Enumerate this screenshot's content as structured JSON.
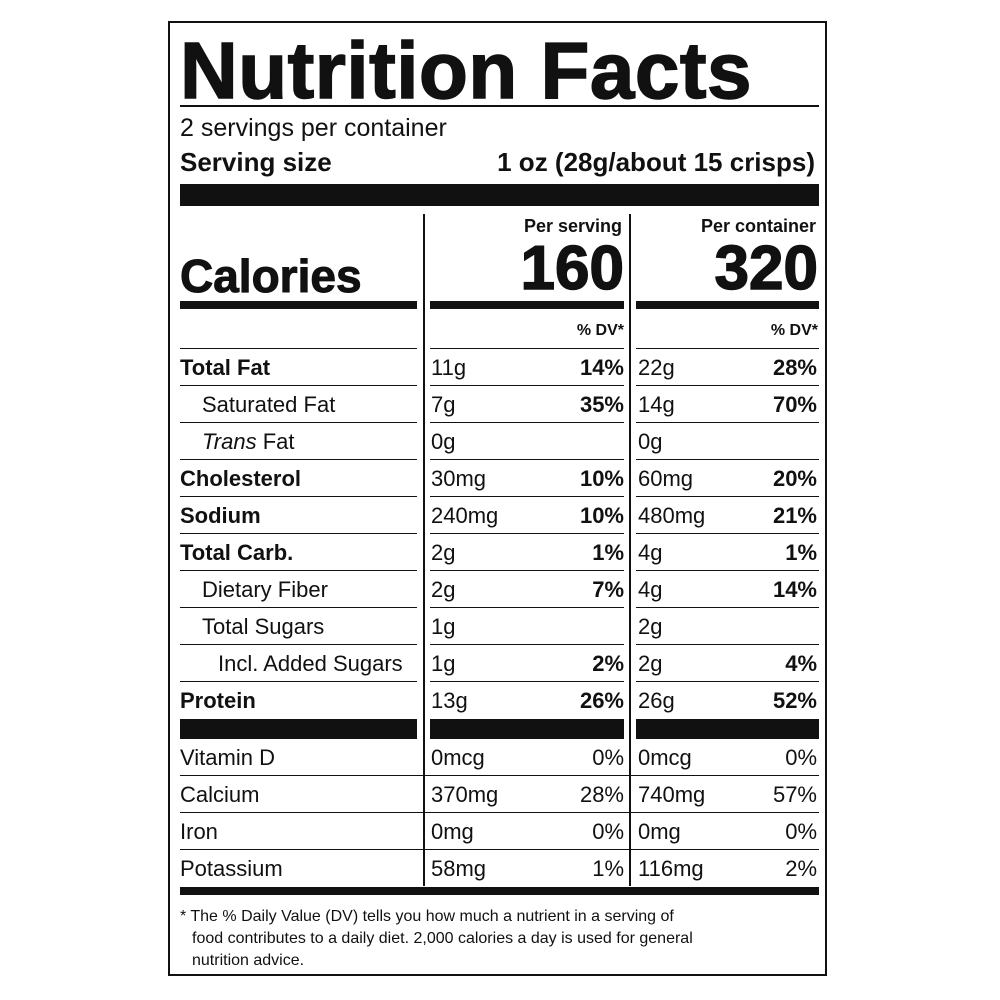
{
  "title": "Nutrition Facts",
  "servings_per_container": "2 servings per container",
  "serving_size_label": "Serving size",
  "serving_size_value": "1 oz (28g/about 15 crisps)",
  "calories_label": "Calories",
  "per_serving_label": "Per serving",
  "per_container_label": "Per container",
  "calories_per_serving": "160",
  "calories_per_container": "320",
  "dv_header": "% DV*",
  "nutrients": [
    {
      "name": "Total Fat",
      "bold": true,
      "indent": 0,
      "s_amt": "11g",
      "s_dv": "14%",
      "c_amt": "22g",
      "c_dv": "28%"
    },
    {
      "name": "Saturated Fat",
      "bold": false,
      "indent": 1,
      "s_amt": "7g",
      "s_dv": "35%",
      "c_amt": "14g",
      "c_dv": "70%"
    },
    {
      "name_italic": "Trans",
      "name": " Fat",
      "bold": false,
      "indent": 1,
      "s_amt": "0g",
      "s_dv": "",
      "c_amt": "0g",
      "c_dv": ""
    },
    {
      "name": "Cholesterol",
      "bold": true,
      "indent": 0,
      "s_amt": "30mg",
      "s_dv": "10%",
      "c_amt": "60mg",
      "c_dv": "20%"
    },
    {
      "name": "Sodium",
      "bold": true,
      "indent": 0,
      "s_amt": "240mg",
      "s_dv": "10%",
      "c_amt": "480mg",
      "c_dv": "21%"
    },
    {
      "name": "Total Carb.",
      "bold": true,
      "indent": 0,
      "s_amt": "2g",
      "s_dv": "1%",
      "c_amt": "4g",
      "c_dv": "1%"
    },
    {
      "name": "Dietary Fiber",
      "bold": false,
      "indent": 1,
      "s_amt": "2g",
      "s_dv": "7%",
      "c_amt": "4g",
      "c_dv": "14%"
    },
    {
      "name": "Total Sugars",
      "bold": false,
      "indent": 1,
      "s_amt": "1g",
      "s_dv": "",
      "c_amt": "2g",
      "c_dv": ""
    },
    {
      "name": "Incl. Added Sugars",
      "bold": false,
      "indent": 2,
      "s_amt": "1g",
      "s_dv": "2%",
      "c_amt": "2g",
      "c_dv": "4%"
    },
    {
      "name": "Protein",
      "bold": true,
      "indent": 0,
      "s_amt": "13g",
      "s_dv": "26%",
      "c_amt": "26g",
      "c_dv": "52%"
    }
  ],
  "vitamins": [
    {
      "name": "Vitamin D",
      "s_amt": "0mcg",
      "s_dv": "0%",
      "c_amt": "0mcg",
      "c_dv": "0%"
    },
    {
      "name": "Calcium",
      "s_amt": "370mg",
      "s_dv": "28%",
      "c_amt": "740mg",
      "c_dv": "57%"
    },
    {
      "name": "Iron",
      "s_amt": "0mg",
      "s_dv": "0%",
      "c_amt": "0mg",
      "c_dv": "0%"
    },
    {
      "name": "Potassium",
      "s_amt": "58mg",
      "s_dv": "1%",
      "c_amt": "116mg",
      "c_dv": "2%"
    }
  ],
  "footnote_line1": "* The % Daily Value (DV) tells you how much a nutrient in a serving of",
  "footnote_line2": "food contributes to a daily diet. 2,000 calories a day is used for general",
  "footnote_line3": "nutrition advice."
}
